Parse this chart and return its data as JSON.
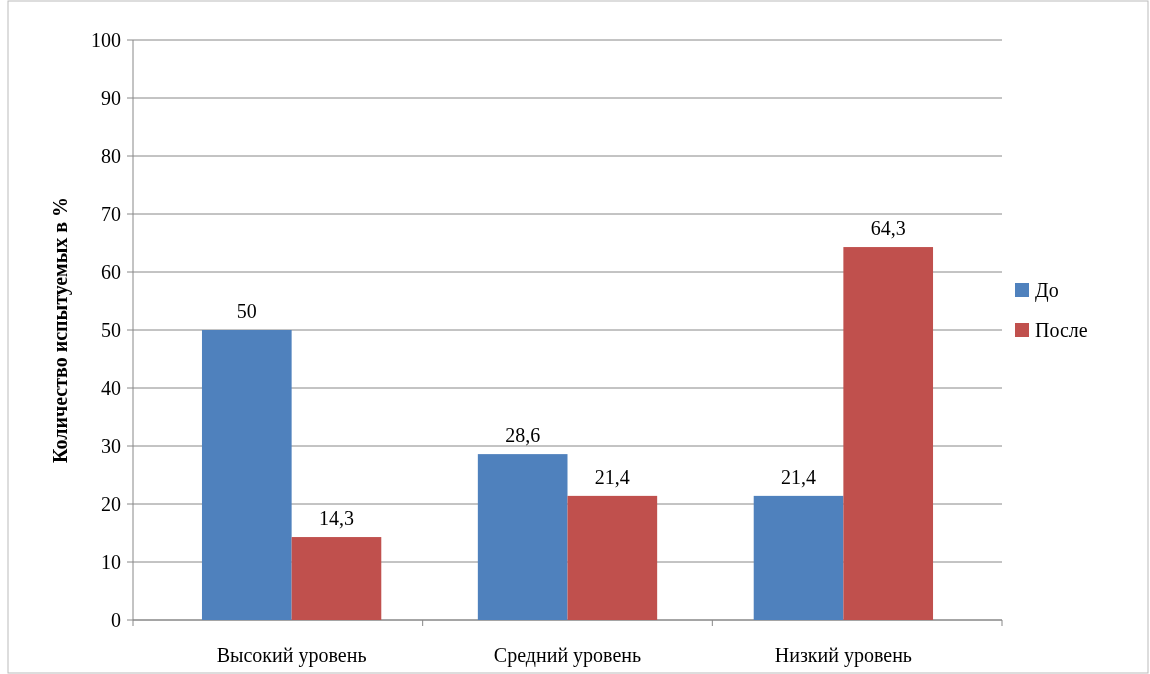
{
  "chart_data": {
    "type": "bar",
    "ylabel": "Количество испытуемых в %",
    "categories": [
      "Высокий уровень",
      "Средний уровень",
      "Низкий уровень"
    ],
    "series": [
      {
        "name": "До",
        "color": "#4f81bd",
        "values": [
          50,
          28.6,
          21.4
        ],
        "value_labels": [
          "50",
          "28,6",
          "21,4"
        ]
      },
      {
        "name": "После",
        "color": "#c0504d",
        "values": [
          14.3,
          21.4,
          64.3
        ],
        "value_labels": [
          "14,3",
          "21,4",
          "64,3"
        ]
      }
    ],
    "ylim": [
      0,
      100
    ],
    "yticks": [
      0,
      10,
      20,
      30,
      40,
      50,
      60,
      70,
      80,
      90,
      100
    ],
    "grid": "y",
    "legend": "right"
  }
}
